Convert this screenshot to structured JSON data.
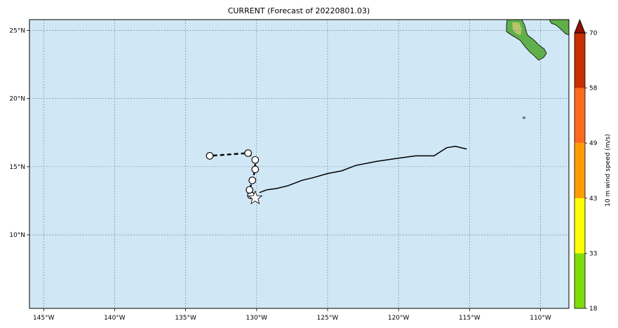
{
  "title": "CURRENT (Forecast of 20220801.03)",
  "map": {
    "lon_range": [
      -146,
      -108
    ],
    "lat_range": [
      4.6,
      25.8
    ],
    "grid": true,
    "ocean_color": "#d0e7f6",
    "lon_ticks": [
      {
        "value": -145,
        "label": "145°W"
      },
      {
        "value": -140,
        "label": "140°W"
      },
      {
        "value": -135,
        "label": "135°W"
      },
      {
        "value": -130,
        "label": "130°W"
      },
      {
        "value": -125,
        "label": "125°W"
      },
      {
        "value": -120,
        "label": "120°W"
      },
      {
        "value": -115,
        "label": "115°W"
      },
      {
        "value": -110,
        "label": "110°W"
      }
    ],
    "lat_ticks": [
      {
        "value": 10,
        "label": "10°N"
      },
      {
        "value": 15,
        "label": "15°N"
      },
      {
        "value": 20,
        "label": "20°N"
      },
      {
        "value": 25,
        "label": "25°N"
      }
    ]
  },
  "chart_data": {
    "type": "line",
    "observed_track": {
      "lon": [
        -115.2,
        -116.0,
        -116.6,
        -117.5,
        -118.8,
        -120.2,
        -121.5,
        -123.0,
        -124.0,
        -125.0,
        -126.0,
        -126.8,
        -127.8,
        -128.6,
        -129.3,
        -129.8
      ],
      "lat": [
        16.3,
        16.5,
        16.4,
        15.8,
        15.8,
        15.6,
        15.4,
        15.1,
        14.7,
        14.5,
        14.2,
        14.0,
        13.6,
        13.4,
        13.3,
        13.1
      ]
    },
    "current_position": {
      "lon": -130.1,
      "lat": 12.7
    },
    "forecast_track": {
      "lon": [
        -130.4,
        -130.5,
        -130.3,
        -130.1,
        -130.1,
        -130.6,
        -133.3
      ],
      "lat": [
        12.9,
        13.3,
        14.0,
        14.8,
        15.5,
        16.0,
        15.8
      ]
    }
  },
  "colorbar": {
    "label": "10 m wind speed (m/s)",
    "ticks": [
      "18",
      "33",
      "43",
      "49",
      "58",
      "70"
    ],
    "colors": [
      "#7fdc0b",
      "#ffff00",
      "#ff9d00",
      "#ff6a20",
      "#c82e00"
    ],
    "extend_color": "#8a1008"
  }
}
